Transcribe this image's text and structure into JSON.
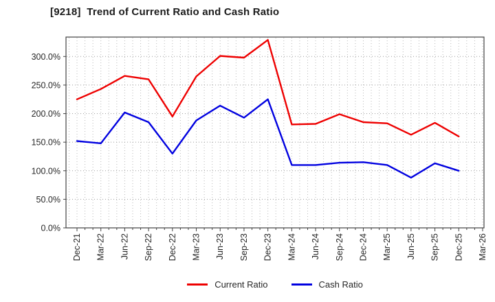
{
  "page": {
    "background": "#ffffff"
  },
  "chart_data": {
    "type": "line",
    "title": "[9218]  Trend of Current Ratio and Cash Ratio",
    "categories": [
      "Dec-21",
      "Mar-22",
      "Jun-22",
      "Sep-22",
      "Dec-22",
      "Mar-23",
      "Jun-23",
      "Sep-23",
      "Dec-23",
      "Mar-24",
      "Jun-24",
      "Sep-24",
      "Dec-24",
      "Mar-25",
      "Jun-25",
      "Sep-25",
      "Dec-25",
      "Mar-26"
    ],
    "series": [
      {
        "name": "Current Ratio",
        "color": "#ee0000",
        "values": [
          225,
          243,
          266,
          260,
          195,
          265,
          301,
          298,
          329,
          181,
          182,
          199,
          185,
          183,
          163,
          184,
          160,
          null
        ]
      },
      {
        "name": "Cash Ratio",
        "color": "#0000e0",
        "values": [
          152,
          148,
          202,
          185,
          130,
          188,
          214,
          193,
          225,
          110,
          110,
          114,
          115,
          110,
          88,
          113,
          100,
          null
        ]
      }
    ],
    "ylim": [
      0,
      334
    ],
    "y_ticks": [
      0,
      50,
      100,
      150,
      200,
      250,
      300
    ],
    "y_tick_labels": [
      "0.0%",
      "50.0%",
      "100.0%",
      "150.0%",
      "200.0%",
      "250.0%",
      "300.0%"
    ],
    "grid": "dotted",
    "x_minor_divisions_per_interval": 3,
    "legend_position": "bottom-center",
    "axis_color": "#404040",
    "grid_color_major": "#999999",
    "grid_color_minor": "#b8b8b8",
    "tick_label_color": "#262626"
  }
}
